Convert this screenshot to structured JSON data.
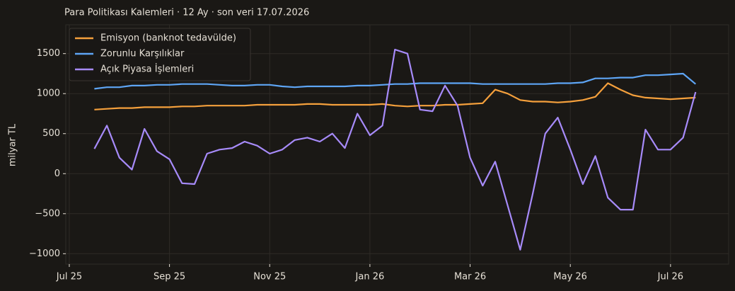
{
  "chart_data": {
    "type": "line",
    "title": "Para Politikası Kalemleri · 12 Ay · son veri 17.07.2026",
    "ylabel": "milyar TL",
    "grid": true,
    "legend": "upper left",
    "x": [
      0.5,
      0.75,
      1,
      1.25,
      1.5,
      1.75,
      2,
      2.25,
      2.5,
      2.75,
      3,
      3.25,
      3.5,
      3.75,
      4,
      4.25,
      4.5,
      4.75,
      5,
      5.25,
      5.5,
      5.75,
      6,
      6.25,
      6.5,
      6.75,
      7,
      7.25,
      7.5,
      7.75,
      8,
      8.25,
      8.5,
      8.75,
      9,
      9.25,
      9.5,
      9.75,
      10,
      10.25,
      10.5,
      10.75,
      11,
      11.25,
      11.5,
      11.75,
      12,
      12.25,
      12.5
    ],
    "xlim": [
      -0.07,
      13.16
    ],
    "xticks": [
      {
        "value": 0,
        "label": "Jul 25"
      },
      {
        "value": 2,
        "label": "Sep 25"
      },
      {
        "value": 4,
        "label": "Nov 25"
      },
      {
        "value": 6,
        "label": "Jan 26"
      },
      {
        "value": 8,
        "label": "Mar 26"
      },
      {
        "value": 10,
        "label": "May 26"
      },
      {
        "value": 12,
        "label": "Jul 26"
      }
    ],
    "ylim": [
      -1130,
      1860
    ],
    "yticks": [
      {
        "value": -1000,
        "label": "−1000"
      },
      {
        "value": -500,
        "label": "−500"
      },
      0,
      500,
      1000,
      1500
    ],
    "series": [
      {
        "name": "Emisyon (banknot tedavülde)",
        "color": "#f5a03c",
        "values": [
          800,
          810,
          820,
          820,
          830,
          830,
          830,
          840,
          840,
          850,
          850,
          850,
          850,
          860,
          860,
          860,
          860,
          870,
          870,
          860,
          860,
          860,
          860,
          870,
          850,
          840,
          850,
          850,
          860,
          860,
          870,
          880,
          1050,
          1000,
          920,
          900,
          900,
          890,
          900,
          920,
          960,
          1130,
          1050,
          980,
          950,
          940,
          930,
          940,
          950
        ]
      },
      {
        "name": "Zorunlu Karşılıklar",
        "color": "#5ea5f5",
        "values": [
          1060,
          1080,
          1080,
          1100,
          1100,
          1110,
          1110,
          1120,
          1120,
          1120,
          1110,
          1100,
          1100,
          1110,
          1110,
          1090,
          1080,
          1090,
          1090,
          1090,
          1090,
          1100,
          1100,
          1110,
          1120,
          1120,
          1130,
          1130,
          1130,
          1130,
          1130,
          1120,
          1120,
          1120,
          1120,
          1120,
          1120,
          1130,
          1130,
          1140,
          1190,
          1190,
          1200,
          1200,
          1230,
          1230,
          1240,
          1250,
          1120
        ]
      },
      {
        "name": "Açık Piyasa İşlemleri",
        "color": "#a78bfa",
        "values": [
          310,
          600,
          200,
          50,
          560,
          280,
          180,
          -120,
          -130,
          250,
          300,
          320,
          400,
          350,
          250,
          300,
          420,
          450,
          400,
          500,
          320,
          750,
          480,
          600,
          1550,
          1500,
          800,
          780,
          1100,
          850,
          200,
          -150,
          150,
          -400,
          -950,
          -250,
          500,
          700,
          300,
          -130,
          220,
          -300,
          -450,
          -450,
          550,
          300,
          300,
          450,
          1020
        ]
      }
    ]
  }
}
